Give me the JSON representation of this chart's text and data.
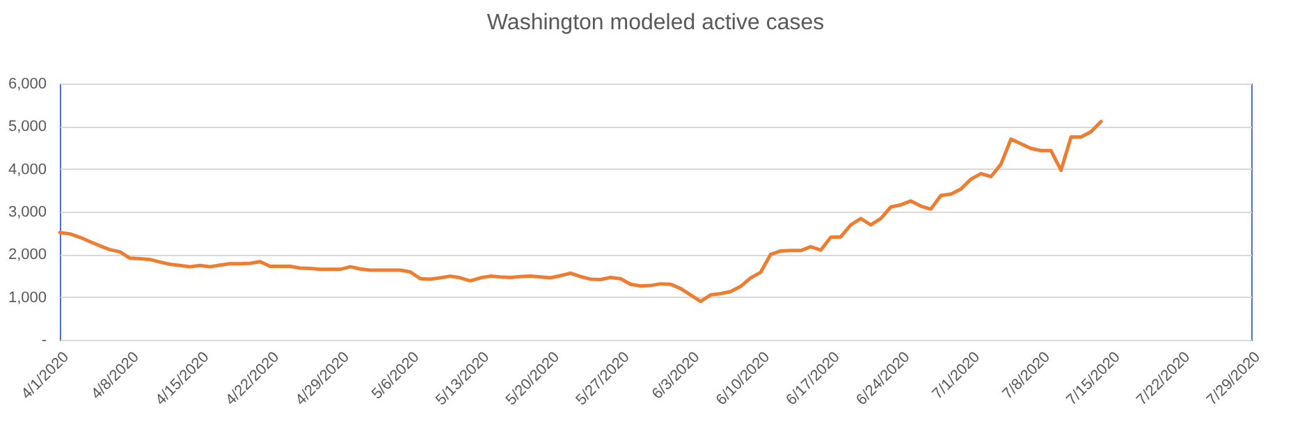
{
  "chart_data": {
    "type": "line",
    "title": "Washington modeled active cases",
    "x": [
      "2020-04-01",
      "2020-04-02",
      "2020-04-03",
      "2020-04-04",
      "2020-04-05",
      "2020-04-06",
      "2020-04-07",
      "2020-04-08",
      "2020-04-09",
      "2020-04-10",
      "2020-04-11",
      "2020-04-12",
      "2020-04-13",
      "2020-04-14",
      "2020-04-15",
      "2020-04-16",
      "2020-04-17",
      "2020-04-18",
      "2020-04-19",
      "2020-04-20",
      "2020-04-21",
      "2020-04-22",
      "2020-04-23",
      "2020-04-24",
      "2020-04-25",
      "2020-04-26",
      "2020-04-27",
      "2020-04-28",
      "2020-04-29",
      "2020-04-30",
      "2020-05-01",
      "2020-05-02",
      "2020-05-03",
      "2020-05-04",
      "2020-05-05",
      "2020-05-06",
      "2020-05-07",
      "2020-05-08",
      "2020-05-09",
      "2020-05-10",
      "2020-05-11",
      "2020-05-12",
      "2020-05-13",
      "2020-05-14",
      "2020-05-15",
      "2020-05-16",
      "2020-05-17",
      "2020-05-18",
      "2020-05-19",
      "2020-05-20",
      "2020-05-21",
      "2020-05-22",
      "2020-05-23",
      "2020-05-24",
      "2020-05-25",
      "2020-05-26",
      "2020-05-27",
      "2020-05-28",
      "2020-05-29",
      "2020-05-30",
      "2020-05-31",
      "2020-06-01",
      "2020-06-02",
      "2020-06-03",
      "2020-06-04",
      "2020-06-05",
      "2020-06-06",
      "2020-06-07",
      "2020-06-08",
      "2020-06-09",
      "2020-06-10",
      "2020-06-11",
      "2020-06-12",
      "2020-06-13",
      "2020-06-14",
      "2020-06-15",
      "2020-06-16",
      "2020-06-17",
      "2020-06-18",
      "2020-06-19",
      "2020-06-20",
      "2020-06-21",
      "2020-06-22",
      "2020-06-23",
      "2020-06-24",
      "2020-06-25",
      "2020-06-26",
      "2020-06-27",
      "2020-06-28",
      "2020-06-29",
      "2020-06-30",
      "2020-07-01",
      "2020-07-02",
      "2020-07-03",
      "2020-07-04",
      "2020-07-05",
      "2020-07-06",
      "2020-07-07",
      "2020-07-08",
      "2020-07-09",
      "2020-07-10",
      "2020-07-11",
      "2020-07-12",
      "2020-07-13",
      "2020-07-14"
    ],
    "series": [
      {
        "color": "#ed7d31",
        "values": [
          2510,
          2480,
          2400,
          2300,
          2200,
          2110,
          2060,
          1910,
          1900,
          1880,
          1820,
          1770,
          1740,
          1710,
          1740,
          1710,
          1750,
          1780,
          1780,
          1790,
          1830,
          1720,
          1720,
          1720,
          1680,
          1670,
          1650,
          1650,
          1650,
          1710,
          1660,
          1630,
          1630,
          1630,
          1630,
          1590,
          1430,
          1420,
          1450,
          1490,
          1450,
          1380,
          1450,
          1490,
          1470,
          1460,
          1480,
          1490,
          1470,
          1450,
          1500,
          1560,
          1480,
          1420,
          1410,
          1460,
          1430,
          1300,
          1260,
          1270,
          1310,
          1300,
          1200,
          1050,
          900,
          1050,
          1080,
          1130,
          1250,
          1450,
          1580,
          2000,
          2080,
          2090,
          2090,
          2180,
          2100,
          2400,
          2410,
          2690,
          2840,
          2690,
          2840,
          3110,
          3160,
          3250,
          3130,
          3060,
          3380,
          3410,
          3530,
          3760,
          3890,
          3820,
          4110,
          4700,
          4590,
          4480,
          4430,
          4430,
          3970,
          4750,
          4750,
          4870,
          5110
        ]
      }
    ],
    "xlim": [
      "2020-04-01",
      "2020-07-29"
    ],
    "xticks": [
      {
        "value": "2020-04-01",
        "label": "4/1/2020"
      },
      {
        "value": "2020-04-08",
        "label": "4/8/2020"
      },
      {
        "value": "2020-04-15",
        "label": "4/15/2020"
      },
      {
        "value": "2020-04-22",
        "label": "4/22/2020"
      },
      {
        "value": "2020-04-29",
        "label": "4/29/2020"
      },
      {
        "value": "2020-05-06",
        "label": "5/6/2020"
      },
      {
        "value": "2020-05-13",
        "label": "5/13/2020"
      },
      {
        "value": "2020-05-20",
        "label": "5/20/2020"
      },
      {
        "value": "2020-05-27",
        "label": "5/27/2020"
      },
      {
        "value": "2020-06-03",
        "label": "6/3/2020"
      },
      {
        "value": "2020-06-10",
        "label": "6/10/2020"
      },
      {
        "value": "2020-06-17",
        "label": "6/17/2020"
      },
      {
        "value": "2020-06-24",
        "label": "6/24/2020"
      },
      {
        "value": "2020-07-01",
        "label": "7/1/2020"
      },
      {
        "value": "2020-07-08",
        "label": "7/8/2020"
      },
      {
        "value": "2020-07-15",
        "label": "7/15/2020"
      },
      {
        "value": "2020-07-22",
        "label": "7/22/2020"
      },
      {
        "value": "2020-07-29",
        "label": "7/29/2020"
      }
    ],
    "ylim": [
      0,
      6000
    ],
    "yticks": [
      {
        "value": 0,
        "label": "-"
      },
      {
        "value": 1000,
        "label": "1,000"
      },
      {
        "value": 2000,
        "label": "2,000"
      },
      {
        "value": 3000,
        "label": "3,000"
      },
      {
        "value": 4000,
        "label": "4,000"
      },
      {
        "value": 5000,
        "label": "5,000"
      },
      {
        "value": 6000,
        "label": "6,000"
      }
    ],
    "grid": "y",
    "line_style": "solid"
  }
}
